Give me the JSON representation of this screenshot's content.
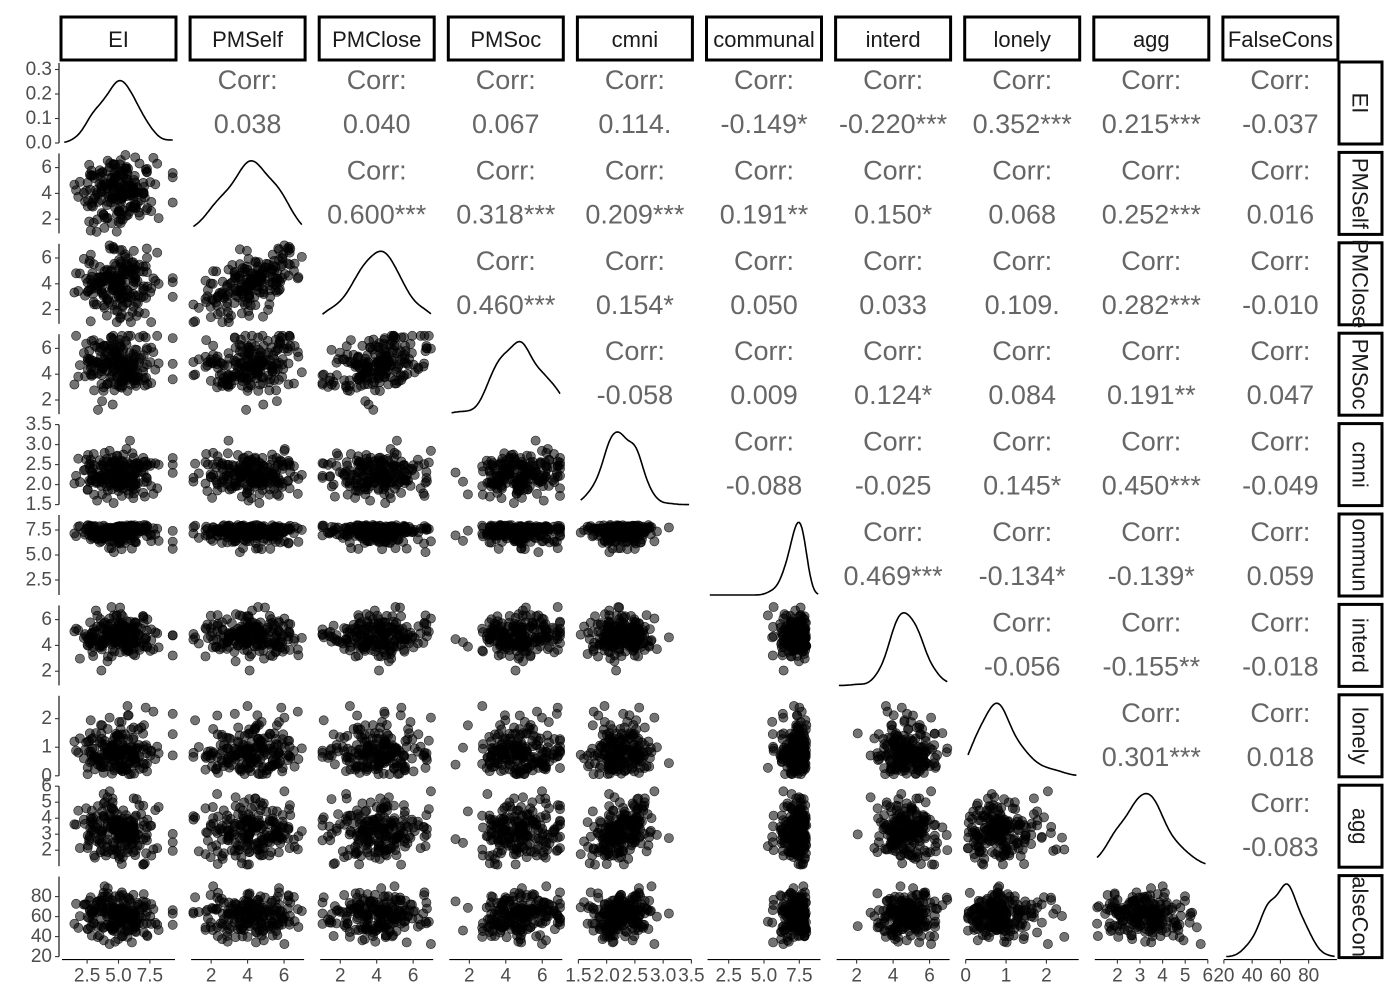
{
  "chart_data": {
    "type": "scatter_matrix",
    "title": "",
    "variables": [
      "EI",
      "PMSelf",
      "PMClose",
      "PMSoc",
      "cmni",
      "communal",
      "interd",
      "lonely",
      "agg",
      "FalseCons"
    ],
    "row_strip_labels": [
      "EI",
      "PMSelf",
      "PMClose",
      "PMSoc",
      "cmni",
      "ommun",
      "interd",
      "lonely",
      "agg",
      "alseCon"
    ],
    "column_strip_labels": [
      "EI",
      "PMSelf",
      "PMClose",
      "PMSoc",
      "cmni",
      "communal",
      "interd",
      "lonely",
      "agg",
      "FalseCons"
    ],
    "corr_label": "Corr:",
    "correlations": [
      {
        "row": 0,
        "col": 1,
        "value": "0.038"
      },
      {
        "row": 0,
        "col": 2,
        "value": "0.040"
      },
      {
        "row": 0,
        "col": 3,
        "value": "0.067"
      },
      {
        "row": 0,
        "col": 4,
        "value": "0.114."
      },
      {
        "row": 0,
        "col": 5,
        "value": "-0.149*"
      },
      {
        "row": 0,
        "col": 6,
        "value": "-0.220***"
      },
      {
        "row": 0,
        "col": 7,
        "value": "0.352***"
      },
      {
        "row": 0,
        "col": 8,
        "value": "0.215***"
      },
      {
        "row": 0,
        "col": 9,
        "value": "-0.037"
      },
      {
        "row": 1,
        "col": 2,
        "value": "0.600***"
      },
      {
        "row": 1,
        "col": 3,
        "value": "0.318***"
      },
      {
        "row": 1,
        "col": 4,
        "value": "0.209***"
      },
      {
        "row": 1,
        "col": 5,
        "value": "0.191**"
      },
      {
        "row": 1,
        "col": 6,
        "value": "0.150*"
      },
      {
        "row": 1,
        "col": 7,
        "value": "0.068"
      },
      {
        "row": 1,
        "col": 8,
        "value": "0.252***"
      },
      {
        "row": 1,
        "col": 9,
        "value": "0.016"
      },
      {
        "row": 2,
        "col": 3,
        "value": "0.460***"
      },
      {
        "row": 2,
        "col": 4,
        "value": "0.154*"
      },
      {
        "row": 2,
        "col": 5,
        "value": "0.050"
      },
      {
        "row": 2,
        "col": 6,
        "value": "0.033"
      },
      {
        "row": 2,
        "col": 7,
        "value": "0.109."
      },
      {
        "row": 2,
        "col": 8,
        "value": "0.282***"
      },
      {
        "row": 2,
        "col": 9,
        "value": "-0.010"
      },
      {
        "row": 3,
        "col": 4,
        "value": "-0.058"
      },
      {
        "row": 3,
        "col": 5,
        "value": "0.009"
      },
      {
        "row": 3,
        "col": 6,
        "value": "0.124*"
      },
      {
        "row": 3,
        "col": 7,
        "value": "0.084"
      },
      {
        "row": 3,
        "col": 8,
        "value": "0.191**"
      },
      {
        "row": 3,
        "col": 9,
        "value": "0.047"
      },
      {
        "row": 4,
        "col": 5,
        "value": "-0.088"
      },
      {
        "row": 4,
        "col": 6,
        "value": "-0.025"
      },
      {
        "row": 4,
        "col": 7,
        "value": "0.145*"
      },
      {
        "row": 4,
        "col": 8,
        "value": "0.450***"
      },
      {
        "row": 4,
        "col": 9,
        "value": "-0.049"
      },
      {
        "row": 5,
        "col": 6,
        "value": "0.469***"
      },
      {
        "row": 5,
        "col": 7,
        "value": "-0.134*"
      },
      {
        "row": 5,
        "col": 8,
        "value": "-0.139*"
      },
      {
        "row": 5,
        "col": 9,
        "value": "0.059"
      },
      {
        "row": 6,
        "col": 7,
        "value": "-0.056"
      },
      {
        "row": 6,
        "col": 8,
        "value": "-0.155**"
      },
      {
        "row": 6,
        "col": 9,
        "value": "-0.018"
      },
      {
        "row": 7,
        "col": 8,
        "value": "0.301***"
      },
      {
        "row": 7,
        "col": 9,
        "value": "0.018"
      },
      {
        "row": 8,
        "col": 9,
        "value": "-0.083"
      }
    ],
    "variable_ranges": {
      "EI": [
        0.5,
        9.5
      ],
      "PMSelf": [
        0.9,
        7.1
      ],
      "PMClose": [
        0.9,
        7.1
      ],
      "PMSoc": [
        0.9,
        7.1
      ],
      "cmni": [
        1.5,
        3.5
      ],
      "communal": [
        1.0,
        9.0
      ],
      "interd": [
        0.9,
        7.1
      ],
      "lonely": [
        0.0,
        2.8
      ],
      "agg": [
        1.0,
        6.0
      ],
      "FalseCons": [
        20,
        100
      ]
    },
    "variable_stats": {
      "EI": {
        "mean": 5.0,
        "sd": 1.5
      },
      "PMSelf": {
        "mean": 4.2,
        "sd": 1.35
      },
      "PMClose": {
        "mean": 4.2,
        "sd": 1.35
      },
      "PMSoc": {
        "mean": 4.9,
        "sd": 1.2
      },
      "cmni": {
        "mean": 2.25,
        "sd": 0.3
      },
      "communal": {
        "mean": 7.4,
        "sd": 1.0
      },
      "interd": {
        "mean": 4.8,
        "sd": 0.85
      },
      "lonely": {
        "mean": 0.9,
        "sd": 0.55
      },
      "agg": {
        "mean": 3.2,
        "sd": 1.0
      },
      "FalseCons": {
        "mean": 60,
        "sd": 12
      }
    },
    "x_ticks": [
      [
        "2.5",
        "5.0",
        "7.5"
      ],
      [
        "2",
        "4",
        "6"
      ],
      [
        "2",
        "4",
        "6"
      ],
      [
        "2",
        "4",
        "6"
      ],
      [
        "1.5",
        "2.0",
        "2.5",
        "3.0",
        "3.5"
      ],
      [
        "2.5",
        "5.0",
        "7.5"
      ],
      [
        "2",
        "4",
        "6"
      ],
      [
        "0",
        "1",
        "2"
      ],
      [
        "2",
        "3",
        "4",
        "5",
        "6"
      ],
      [
        "20",
        "40",
        "60",
        "80"
      ]
    ],
    "y_ticks": [
      [
        "0.0",
        "0.1",
        "0.2",
        "0.3"
      ],
      [
        "2",
        "4",
        "6"
      ],
      [
        "2",
        "4",
        "6"
      ],
      [
        "2",
        "4",
        "6"
      ],
      [
        "1.5",
        "2.0",
        "2.5",
        "3.0",
        "3.5"
      ],
      [
        "2.5",
        "5.0",
        "7.5"
      ],
      [
        "2",
        "4",
        "6"
      ],
      [
        "0",
        "1",
        "2"
      ],
      [
        "2",
        "3",
        "4",
        "5",
        "6"
      ],
      [
        "20",
        "40",
        "60",
        "80"
      ]
    ],
    "ei_density_ylim": [
      0,
      0.32
    ],
    "n_points_per_panel": 200,
    "grid": false,
    "colors": {
      "points": "#000000",
      "corr_text": "#666666",
      "strip_border": "#000000"
    }
  }
}
